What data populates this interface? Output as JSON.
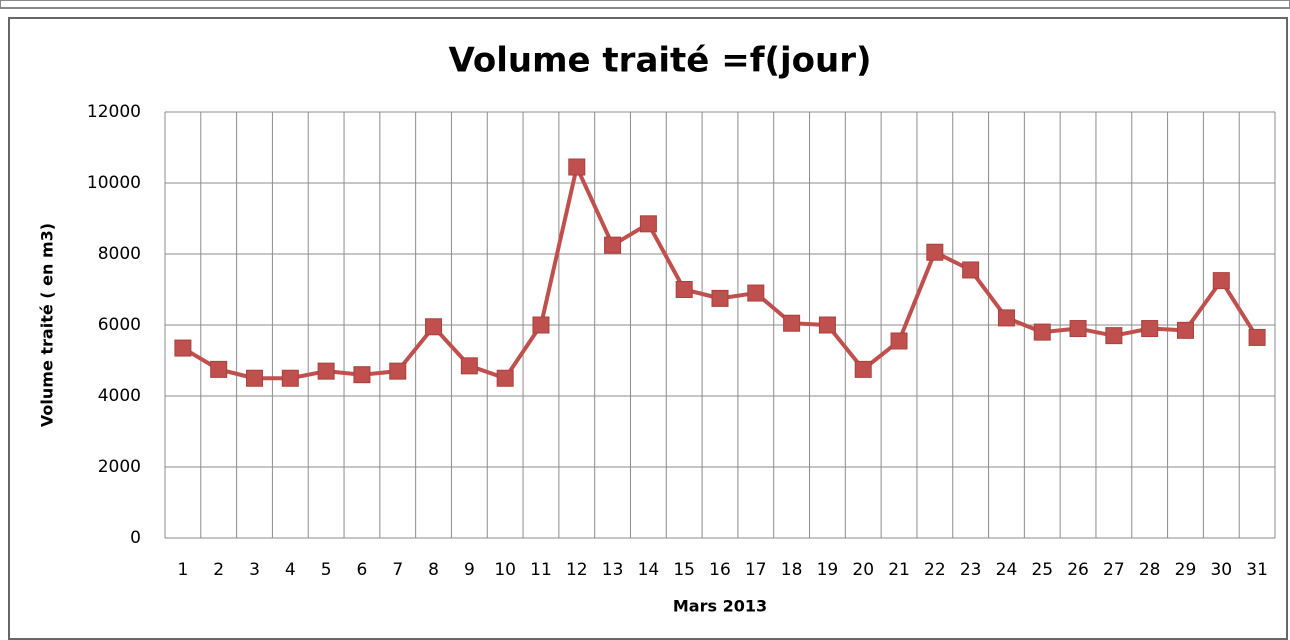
{
  "chart_data": {
    "type": "line",
    "title": "Volume traité =f(jour)",
    "x_label": "Mars 2013",
    "y_label": "Volume traité ( en m3)",
    "categories": [
      "1",
      "2",
      "3",
      "4",
      "5",
      "6",
      "7",
      "8",
      "9",
      "10",
      "11",
      "12",
      "13",
      "14",
      "15",
      "16",
      "17",
      "18",
      "19",
      "20",
      "21",
      "22",
      "23",
      "24",
      "25",
      "26",
      "27",
      "28",
      "29",
      "30",
      "31"
    ],
    "series": [
      {
        "name": "Volume traité",
        "color": "#c0504d",
        "values": [
          5350,
          4750,
          4500,
          4500,
          4700,
          4600,
          4700,
          5950,
          4850,
          4500,
          6000,
          10450,
          8250,
          8850,
          7000,
          6750,
          6900,
          6050,
          6000,
          4750,
          5550,
          8050,
          7550,
          6200,
          5800,
          5900,
          5700,
          5900,
          5850,
          7250,
          5650
        ]
      }
    ],
    "ylim": [
      0,
      12000
    ],
    "yticks": [
      0,
      2000,
      4000,
      6000,
      8000,
      10000,
      12000
    ],
    "grid": true
  }
}
